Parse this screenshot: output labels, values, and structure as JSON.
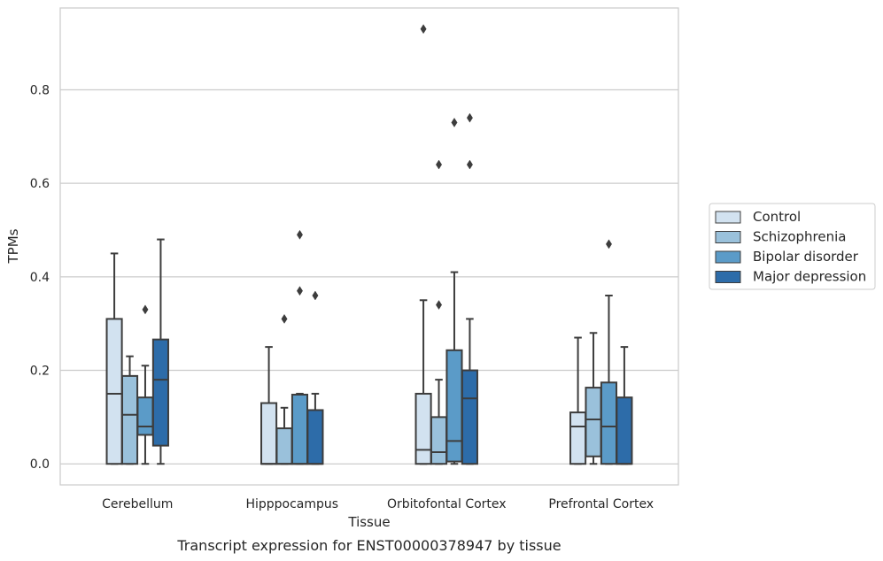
{
  "caption": "Transcript expression for ENST00000378947 by tissue",
  "chart_data": {
    "type": "boxplot",
    "xlabel": "Tissue",
    "ylabel": "TPMs",
    "ylim": [
      -0.045,
      0.975
    ],
    "yticks": [
      0.0,
      0.2,
      0.4,
      0.6,
      0.8
    ],
    "ytick_labels": [
      "0.0",
      "0.2",
      "0.4",
      "0.6",
      "0.8"
    ],
    "grid": "horizontal",
    "legend_position": "right",
    "categories": [
      "Cerebellum",
      "Hipppocampus",
      "Orbitofontal Cortex",
      "Prefrontal Cortex"
    ],
    "series": [
      {
        "name": "Control",
        "color": "#d2e2f0",
        "boxes": [
          {
            "whislo": 0.0,
            "q1": 0.0,
            "med": 0.15,
            "q3": 0.31,
            "whishi": 0.45,
            "fliers": []
          },
          {
            "whislo": 0.0,
            "q1": 0.0,
            "med": 0.0,
            "q3": 0.13,
            "whishi": 0.25,
            "fliers": []
          },
          {
            "whislo": 0.0,
            "q1": 0.0,
            "med": 0.03,
            "q3": 0.15,
            "whishi": 0.35,
            "fliers": [
              0.93
            ]
          },
          {
            "whislo": 0.0,
            "q1": 0.0,
            "med": 0.08,
            "q3": 0.11,
            "whishi": 0.27,
            "fliers": []
          }
        ]
      },
      {
        "name": "Schizophrenia",
        "color": "#9ac1db",
        "boxes": [
          {
            "whislo": 0.0,
            "q1": 0.0,
            "med": 0.105,
            "q3": 0.188,
            "whishi": 0.23,
            "fliers": []
          },
          {
            "whislo": 0.0,
            "q1": 0.0,
            "med": 0.0,
            "q3": 0.076,
            "whishi": 0.12,
            "fliers": [
              0.31
            ]
          },
          {
            "whislo": 0.0,
            "q1": 0.0,
            "med": 0.025,
            "q3": 0.1,
            "whishi": 0.18,
            "fliers": [
              0.64,
              0.34
            ]
          },
          {
            "whislo": 0.0,
            "q1": 0.016,
            "med": 0.095,
            "q3": 0.163,
            "whishi": 0.28,
            "fliers": []
          }
        ]
      },
      {
        "name": "Bipolar disorder",
        "color": "#5b9bc8",
        "boxes": [
          {
            "whislo": 0.0,
            "q1": 0.062,
            "med": 0.08,
            "q3": 0.142,
            "whishi": 0.21,
            "fliers": [
              0.33
            ]
          },
          {
            "whislo": 0.0,
            "q1": 0.0,
            "med": 0.0,
            "q3": 0.148,
            "whishi": 0.15,
            "fliers": [
              0.49,
              0.37
            ]
          },
          {
            "whislo": 0.0,
            "q1": 0.005,
            "med": 0.049,
            "q3": 0.243,
            "whishi": 0.41,
            "fliers": [
              0.73
            ]
          },
          {
            "whislo": 0.0,
            "q1": 0.0,
            "med": 0.08,
            "q3": 0.174,
            "whishi": 0.36,
            "fliers": [
              0.47
            ]
          }
        ]
      },
      {
        "name": "Major depression",
        "color": "#2d6ca9",
        "boxes": [
          {
            "whislo": 0.0,
            "q1": 0.039,
            "med": 0.18,
            "q3": 0.266,
            "whishi": 0.48,
            "fliers": []
          },
          {
            "whislo": 0.0,
            "q1": 0.0,
            "med": 0.0,
            "q3": 0.115,
            "whishi": 0.15,
            "fliers": [
              0.36
            ]
          },
          {
            "whislo": 0.0,
            "q1": 0.0,
            "med": 0.14,
            "q3": 0.2,
            "whishi": 0.31,
            "fliers": [
              0.74,
              0.64
            ]
          },
          {
            "whislo": 0.0,
            "q1": 0.0,
            "med": 0.0,
            "q3": 0.142,
            "whishi": 0.25,
            "fliers": []
          }
        ]
      }
    ]
  }
}
